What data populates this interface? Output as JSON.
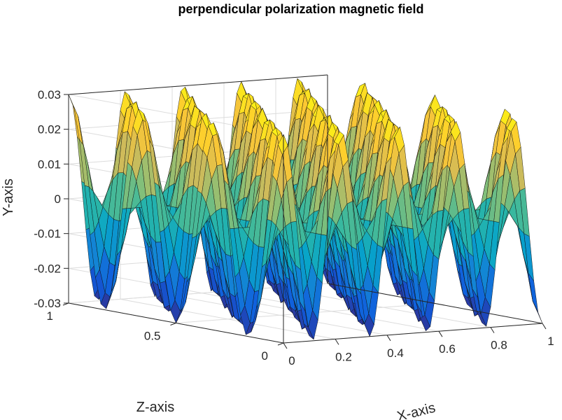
{
  "chart_data": {
    "type": "surface",
    "title": "perpendicular polarization magnetic field",
    "xlabel": "X-axis",
    "ylabel": "Y-axis",
    "zlabel": "Z-axis",
    "x_axis": {
      "range": [
        0,
        1
      ],
      "ticks": [
        0,
        0.2,
        0.4,
        0.6,
        0.8,
        1
      ],
      "tick_labels": [
        "0",
        "0.2",
        "0.4",
        "0.6",
        "0.8",
        "1"
      ]
    },
    "z_axis": {
      "range": [
        0,
        1
      ],
      "ticks": [
        0,
        0.5,
        1
      ],
      "tick_labels": [
        "0",
        "0.5",
        "1"
      ]
    },
    "y_axis": {
      "range": [
        -0.03,
        0.03
      ],
      "ticks": [
        -0.03,
        -0.02,
        -0.01,
        0,
        0.01,
        0.02,
        0.03
      ],
      "tick_labels": [
        "-0.03",
        "-0.02",
        "-0.01",
        "0",
        "0.01",
        "0.02",
        "0.03"
      ]
    },
    "surface": {
      "function": "Y = 0.03 * cos(2*pi*4.5*X) * cos(2*pi*3*Z)",
      "amplitude": 0.03,
      "x_wavenumber": 4.5,
      "z_wavenumber": 3,
      "x_samples": 61,
      "z_samples": 41
    },
    "colormap": "parula",
    "colormap_stops": [
      "#352a87",
      "#0f5cdd",
      "#1481d6",
      "#06a4ca",
      "#2eb7a4",
      "#87bf77",
      "#d1bb59",
      "#fec832",
      "#f9fb0e"
    ],
    "grid": true,
    "view": "3d"
  }
}
